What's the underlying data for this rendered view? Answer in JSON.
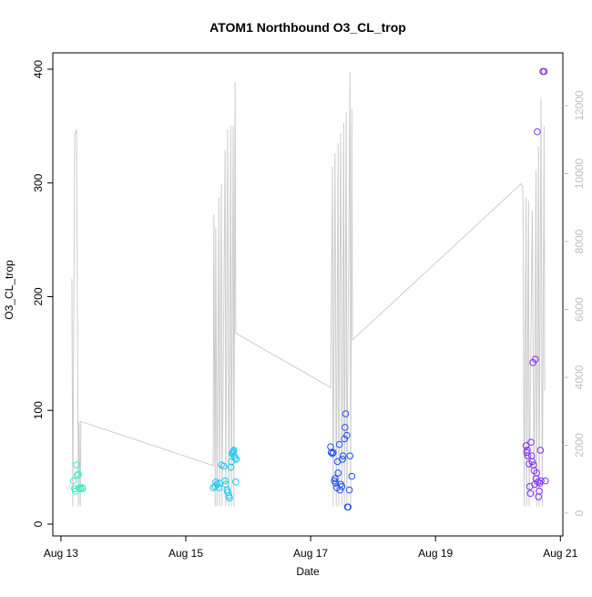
{
  "chart_data": {
    "type": "scatter",
    "title": "ATOM1 Northbound O3_CL_trop",
    "x_label": "Date",
    "y_label": "O3_CL_trop",
    "xlim": [
      12.87,
      21.04
    ],
    "xticks": [
      {
        "value": 13,
        "label": "Aug 13"
      },
      {
        "value": 15,
        "label": "Aug 15"
      },
      {
        "value": 17,
        "label": "Aug 17"
      },
      {
        "value": 19,
        "label": "Aug 19"
      },
      {
        "value": 21,
        "label": "Aug 21"
      }
    ],
    "ylim": [
      -10.4,
      414.4
    ],
    "yticks": [
      0,
      100,
      200,
      300,
      400
    ],
    "y2lim": [
      -671,
      13557
    ],
    "y2ticks": [
      0,
      2000,
      4000,
      6000,
      8000,
      10000,
      12000
    ],
    "y2_color": "#c0c0c0",
    "series": [
      {
        "axis": "y2",
        "style": "line",
        "color": "#cccccc",
        "x": [
          13.175,
          13.19,
          13.22,
          13.25,
          13.28,
          13.29,
          13.31,
          13.32,
          15.44,
          15.45,
          15.47,
          15.48,
          15.5,
          15.53,
          15.54,
          15.57,
          15.58,
          15.63,
          15.64,
          15.67,
          15.69,
          15.72,
          15.73,
          15.76,
          15.77,
          15.79,
          15.8,
          17.32,
          17.35,
          17.36,
          17.39,
          17.41,
          17.44,
          17.45,
          17.48,
          17.5,
          17.53,
          17.54,
          17.57,
          17.58,
          17.63,
          17.64,
          17.66,
          17.67,
          20.37,
          20.4,
          20.42,
          20.45,
          20.46,
          20.49,
          20.5,
          20.55,
          20.58,
          20.61,
          20.62,
          20.65,
          20.66,
          20.69,
          20.71,
          20.74,
          20.75
        ],
        "values": [
          6900,
          200,
          11100,
          11300,
          200,
          2700,
          200,
          2700,
          1400,
          8800,
          200,
          8400,
          200,
          9300,
          200,
          9700,
          200,
          10700,
          200,
          11300,
          200,
          11400,
          200,
          11400,
          200,
          12700,
          5300,
          3700,
          10200,
          200,
          10600,
          200,
          10900,
          200,
          11200,
          200,
          11500,
          200,
          11800,
          200,
          13000,
          200,
          11900,
          5100,
          9700,
          9600,
          200,
          9300,
          200,
          9200,
          200,
          8900,
          500,
          10100,
          200,
          10800,
          200,
          12200,
          200,
          11400,
          3600
        ]
      },
      {
        "style": "points",
        "color": "#33eec0",
        "x": [
          13.2,
          13.22,
          13.23,
          13.25,
          13.26,
          13.28,
          13.29,
          13.31,
          13.34,
          13.35
        ],
        "values": [
          38,
          31,
          29,
          52,
          43,
          44,
          32,
          31,
          32,
          31
        ]
      },
      {
        "style": "points",
        "color": "#1ec8f0",
        "x": [
          15.44,
          15.47,
          15.48,
          15.5,
          15.53,
          15.54,
          15.57,
          15.61,
          15.63,
          15.64,
          15.66,
          15.67,
          15.69,
          15.7,
          15.72,
          15.73,
          15.74,
          15.76,
          15.77,
          15.78,
          15.79,
          15.8,
          15.81,
          15.75
        ],
        "values": [
          32,
          33,
          37,
          35,
          32,
          36,
          52,
          51,
          38,
          35,
          30,
          28,
          25,
          23,
          50,
          55,
          62,
          64,
          65,
          60,
          58,
          37,
          57,
          63
        ]
      },
      {
        "style": "points",
        "color": "#2050f0",
        "x": [
          17.32,
          17.33,
          17.35,
          17.36,
          17.38,
          17.39,
          17.4,
          17.42,
          17.43,
          17.44,
          17.46,
          17.47,
          17.48,
          17.5,
          17.51,
          17.52,
          17.54,
          17.55,
          17.56,
          17.58,
          17.59,
          17.6,
          17.62,
          17.63,
          17.66
        ],
        "values": [
          68,
          63,
          62,
          63,
          38,
          40,
          36,
          32,
          55,
          45,
          70,
          30,
          35,
          33,
          57,
          60,
          75,
          85,
          97,
          78,
          15,
          15,
          30,
          60,
          42
        ]
      },
      {
        "style": "points",
        "color": "#8030f0",
        "x": [
          20.45,
          20.46,
          20.47,
          20.48,
          20.5,
          20.51,
          20.52,
          20.53,
          20.54,
          20.55,
          20.56,
          20.57,
          20.58,
          20.59,
          20.6,
          20.61,
          20.62,
          20.63,
          20.64,
          20.65,
          20.66,
          20.67,
          20.68,
          20.69,
          20.72,
          20.74,
          20.76
        ],
        "values": [
          69,
          63,
          65,
          60,
          53,
          33,
          27,
          72,
          60,
          55,
          142,
          52,
          47,
          35,
          145,
          40,
          45,
          345,
          37,
          24,
          29,
          36,
          65,
          38,
          398,
          398,
          38
        ]
      }
    ]
  }
}
